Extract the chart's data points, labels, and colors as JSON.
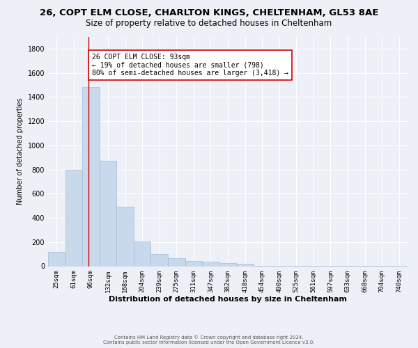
{
  "title1": "26, COPT ELM CLOSE, CHARLTON KINGS, CHELTENHAM, GL53 8AE",
  "title2": "Size of property relative to detached houses in Cheltenham",
  "xlabel": "Distribution of detached houses by size in Cheltenham",
  "ylabel": "Number of detached properties",
  "categories": [
    "25sqm",
    "61sqm",
    "96sqm",
    "132sqm",
    "168sqm",
    "204sqm",
    "239sqm",
    "275sqm",
    "311sqm",
    "347sqm",
    "382sqm",
    "418sqm",
    "454sqm",
    "490sqm",
    "525sqm",
    "561sqm",
    "597sqm",
    "633sqm",
    "668sqm",
    "704sqm",
    "740sqm"
  ],
  "values": [
    120,
    800,
    1480,
    875,
    490,
    205,
    100,
    65,
    45,
    35,
    28,
    22,
    5,
    3,
    2,
    2,
    1,
    1,
    1,
    1,
    1
  ],
  "bar_color": "#c9d9ec",
  "bar_edge_color": "#a0bcd8",
  "ylim": [
    0,
    1900
  ],
  "yticks": [
    0,
    200,
    400,
    600,
    800,
    1000,
    1200,
    1400,
    1600,
    1800
  ],
  "vline_x": 1.85,
  "vline_color": "#cc0000",
  "annotation_text": "26 COPT ELM CLOSE: 93sqm\n← 19% of detached houses are smaller (798)\n80% of semi-detached houses are larger (3,418) →",
  "annotation_box_color": "#ffffff",
  "annotation_box_edge": "#cc0000",
  "footer1": "Contains HM Land Registry data © Crown copyright and database right 2024.",
  "footer2": "Contains public sector information licensed under the Open Government Licence v3.0.",
  "background_color": "#edf1f7",
  "grid_color": "#ffffff",
  "title1_fontsize": 9.5,
  "title2_fontsize": 8.5,
  "ann_fontsize": 7.0,
  "ylabel_fontsize": 7.0,
  "xlabel_fontsize": 8.0,
  "tick_fontsize": 6.5,
  "ytick_fontsize": 7.0,
  "footer_fontsize": 5.0
}
